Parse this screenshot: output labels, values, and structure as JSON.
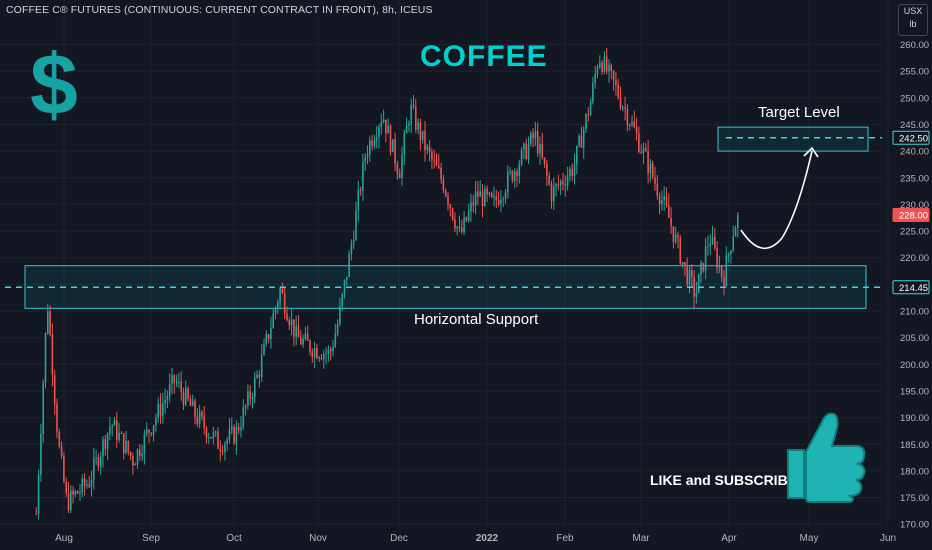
{
  "header": {
    "instrument": "COFFEE C® FUTURES (CONTINUOUS: CURRENT CONTRACT IN FRONT), 8h, ICEUS",
    "unit_top": "USX",
    "unit_bottom": "lb"
  },
  "annotations": {
    "title": "COFFEE",
    "currency_symbol": "$",
    "target_label": "Target Level",
    "support_label": "Horizontal Support",
    "cta": "LIKE and SUBSCRIBE",
    "thumbs_icon": "thumbs-up-icon"
  },
  "colors": {
    "background": "#131722",
    "up": "#26a69a",
    "down": "#ef5350",
    "accent": "#00d0d0",
    "current_price_bg": "#f05252"
  },
  "chart_data": {
    "type": "candlestick",
    "ylim": [
      168,
      264
    ],
    "yticks": [
      170,
      175,
      180,
      185,
      190,
      195,
      200,
      205,
      210,
      215,
      220,
      225,
      230,
      235,
      240,
      245,
      250,
      255,
      260
    ],
    "xtick_labels": [
      "Aug",
      "Sep",
      "Oct",
      "Nov",
      "Dec",
      "2022",
      "Feb",
      "Mar",
      "Apr",
      "May",
      "Jun"
    ],
    "price_path": [
      [
        "2021-07-22",
        172
      ],
      [
        "2021-07-26",
        212
      ],
      [
        "2021-07-30",
        185
      ],
      [
        "2021-08-02",
        174
      ],
      [
        "2021-08-10",
        178
      ],
      [
        "2021-08-18",
        189
      ],
      [
        "2021-08-26",
        182
      ],
      [
        "2021-09-02",
        189
      ],
      [
        "2021-09-10",
        197
      ],
      [
        "2021-09-18",
        190
      ],
      [
        "2021-09-26",
        185
      ],
      [
        "2021-10-02",
        187
      ],
      [
        "2021-10-10",
        198
      ],
      [
        "2021-10-18",
        214
      ],
      [
        "2021-10-24",
        205
      ],
      [
        "2021-10-30",
        203
      ],
      [
        "2021-11-05",
        202
      ],
      [
        "2021-11-08",
        208
      ],
      [
        "2021-11-12",
        220
      ],
      [
        "2021-11-18",
        240
      ],
      [
        "2021-11-24",
        247
      ],
      [
        "2021-11-30",
        236
      ],
      [
        "2021-12-04",
        248
      ],
      [
        "2021-12-10",
        240
      ],
      [
        "2021-12-16",
        234
      ],
      [
        "2021-12-22",
        224
      ],
      [
        "2021-12-28",
        232
      ],
      [
        "2022-01-03",
        230
      ],
      [
        "2022-01-10",
        236
      ],
      [
        "2022-01-18",
        243
      ],
      [
        "2022-01-24",
        232
      ],
      [
        "2022-02-01",
        237
      ],
      [
        "2022-02-07",
        249
      ],
      [
        "2022-02-10",
        258
      ],
      [
        "2022-02-16",
        252
      ],
      [
        "2022-02-22",
        245
      ],
      [
        "2022-03-01",
        236
      ],
      [
        "2022-03-07",
        228
      ],
      [
        "2022-03-13",
        218
      ],
      [
        "2022-03-17",
        213
      ],
      [
        "2022-03-22",
        224
      ],
      [
        "2022-03-27",
        216
      ],
      [
        "2022-03-31",
        226
      ],
      [
        "2022-04-02",
        228
      ]
    ],
    "levels": {
      "horizontal_support": 214.45,
      "target": 242.5,
      "current_price": 228.0
    },
    "support_zone": [
      210.5,
      218.5
    ],
    "target_zone": [
      240.0,
      244.5
    ],
    "price_labels": [
      "242.50",
      "228.00",
      "214.45"
    ]
  }
}
